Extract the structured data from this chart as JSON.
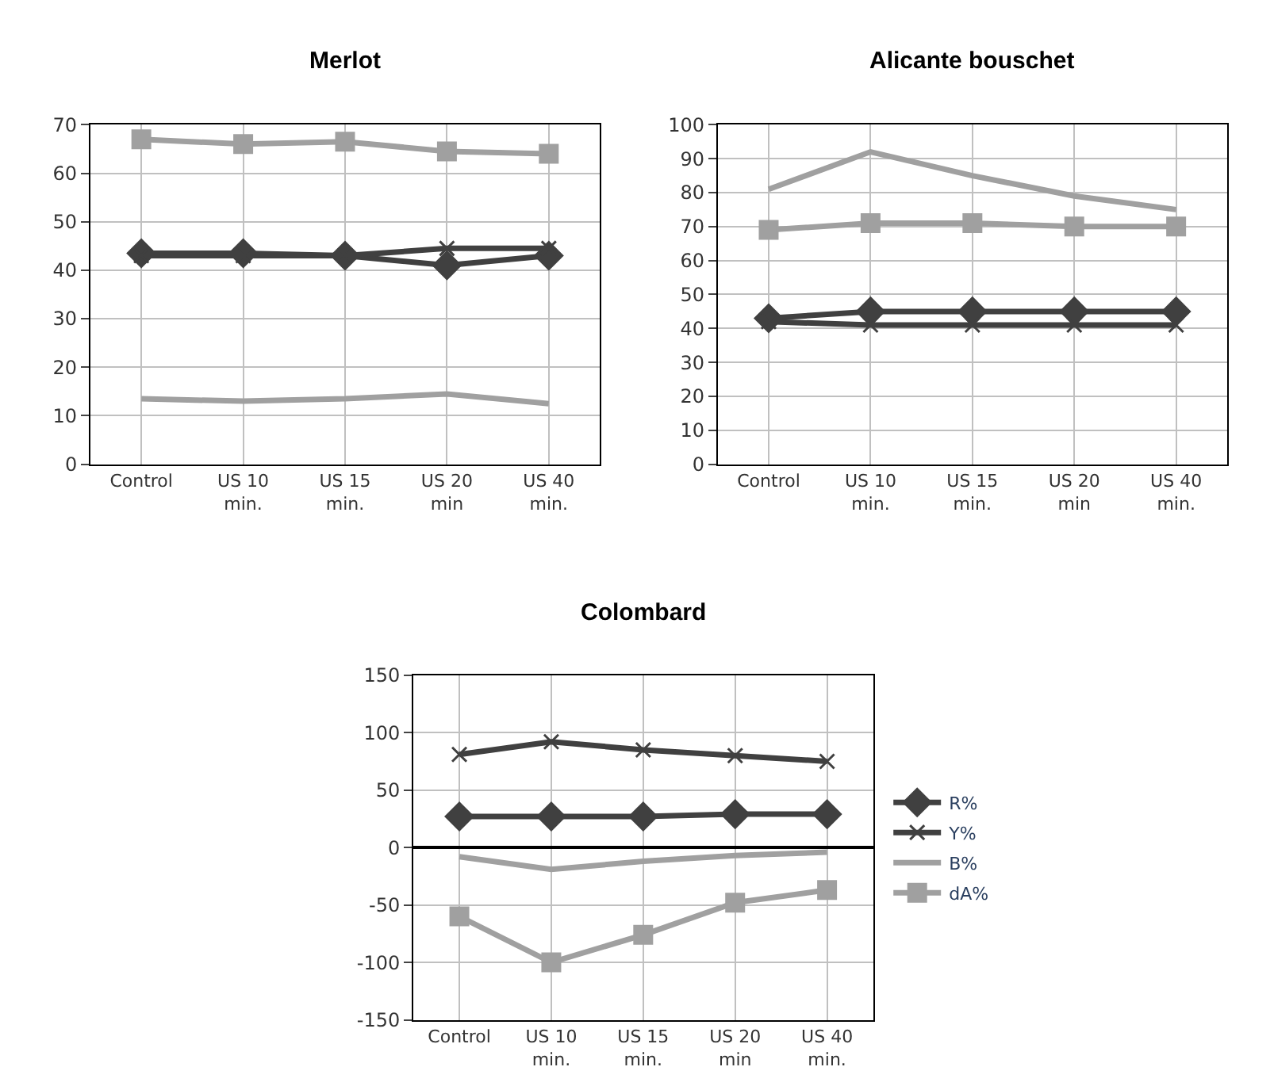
{
  "chart_data": [
    {
      "type": "line",
      "title": "Merlot",
      "categories": [
        "Control",
        "US 10 min.",
        "US 15 min.",
        "US 20 min",
        "US 40 min."
      ],
      "ylim": [
        0,
        70
      ],
      "yticks": [
        0,
        10,
        20,
        30,
        40,
        50,
        60,
        70
      ],
      "grid": true,
      "legend": false,
      "line_style": "solid",
      "series": [
        {
          "color": "#404040",
          "marker": "diamond",
          "values": [
            43.5,
            43.5,
            43,
            41,
            43
          ]
        },
        {
          "color": "#404040",
          "marker": "cross",
          "values": [
            43,
            43,
            43,
            44.5,
            44.5
          ]
        },
        {
          "color": "#a0a0a0",
          "marker": "none",
          "values": [
            13.5,
            13,
            13.5,
            14.5,
            12.5
          ]
        },
        {
          "color": "#a0a0a0",
          "marker": "square",
          "values": [
            67,
            66,
            66.5,
            64.5,
            64
          ]
        }
      ]
    },
    {
      "type": "line",
      "title": "Alicante bouschet",
      "categories": [
        "Control",
        "US 10 min.",
        "US 15 min.",
        "US 20 min",
        "US 40 min."
      ],
      "ylim": [
        0,
        100
      ],
      "yticks": [
        0,
        10,
        20,
        30,
        40,
        50,
        60,
        70,
        80,
        90,
        100
      ],
      "grid": true,
      "legend": false,
      "line_style": "solid",
      "series": [
        {
          "color": "#404040",
          "marker": "diamond",
          "values": [
            43,
            45,
            45,
            45,
            45
          ]
        },
        {
          "color": "#404040",
          "marker": "cross",
          "values": [
            42,
            41,
            41,
            41,
            41
          ]
        },
        {
          "color": "#a0a0a0",
          "marker": "none",
          "values": [
            81,
            92,
            85,
            79,
            75
          ]
        },
        {
          "color": "#a0a0a0",
          "marker": "square",
          "values": [
            69,
            71,
            71,
            70,
            70
          ]
        }
      ]
    },
    {
      "type": "line",
      "title": "Colombard",
      "categories": [
        "Control",
        "US 10 min.",
        "US 15 min.",
        "US 20 min",
        "US 40 min."
      ],
      "ylim": [
        -150,
        150
      ],
      "yticks": [
        -150,
        -100,
        -50,
        0,
        50,
        100,
        150
      ],
      "grid": true,
      "legend": "right",
      "line_style": "solid",
      "series": [
        {
          "name": "R%",
          "color": "#404040",
          "marker": "diamond",
          "values": [
            27,
            27,
            27,
            29,
            29
          ]
        },
        {
          "name": "Y%",
          "color": "#404040",
          "marker": "cross",
          "values": [
            81,
            92,
            85,
            80,
            75
          ]
        },
        {
          "name": "B%",
          "color": "#a0a0a0",
          "marker": "none",
          "values": [
            -8,
            -19,
            -12,
            -7,
            -4
          ]
        },
        {
          "name": "dA%",
          "color": "#a0a0a0",
          "marker": "square",
          "values": [
            -60,
            -100,
            -76,
            -48,
            -37
          ]
        }
      ]
    }
  ]
}
